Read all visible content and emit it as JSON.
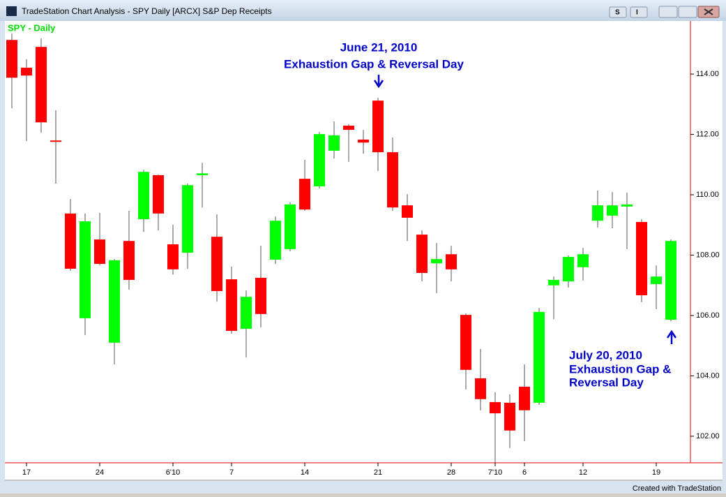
{
  "window_title": "TradeStation Chart Analysis - SPY Daily [ARCX] S&P Dep Receipts",
  "toolbar": {
    "button_1": "S",
    "button_2": "I"
  },
  "footer": "Created with TradeStation",
  "chart_data": {
    "type": "candlestick",
    "title": "SPY - Daily",
    "annotations": [
      [
        "June 21, 2010",
        "Exhaustion Gap & Reversal Day"
      ],
      [
        "July 20, 2010",
        "Exhaustion Gap &",
        "Reversal Day"
      ]
    ],
    "categories": [
      null,
      "17",
      null,
      null,
      null,
      null,
      "24",
      null,
      null,
      null,
      null,
      "6'10",
      null,
      null,
      null,
      "7",
      null,
      null,
      null,
      null,
      "14",
      null,
      null,
      null,
      null,
      "21",
      null,
      null,
      null,
      null,
      "28",
      null,
      null,
      "7'10",
      null,
      "6",
      null,
      null,
      null,
      "12",
      null,
      null,
      null,
      null,
      "19",
      null
    ],
    "open": [
      115.13,
      114.21,
      114.9,
      111.8,
      109.38,
      105.91,
      108.52,
      105.1,
      108.47,
      109.19,
      110.65,
      108.36,
      108.08,
      110.65,
      108.61,
      107.2,
      105.56,
      107.25,
      107.85,
      108.2,
      110.53,
      110.28,
      111.46,
      112.29,
      111.83,
      113.12,
      111.41,
      109.65,
      108.68,
      107.73,
      108.03,
      106.02,
      103.92,
      103.13,
      103.11,
      103.64,
      103.11,
      107.0,
      107.13,
      107.6,
      109.14,
      109.31,
      109.61,
      109.1,
      107.04,
      105.86
    ],
    "high": [
      115.34,
      114.49,
      115.18,
      112.8,
      109.86,
      109.38,
      109.4,
      107.87,
      109.47,
      110.83,
      110.67,
      109.01,
      110.37,
      111.06,
      109.35,
      107.62,
      106.83,
      108.31,
      109.28,
      109.75,
      111.16,
      112.08,
      112.43,
      112.34,
      112.15,
      113.21,
      111.9,
      110.02,
      108.82,
      108.4,
      108.31,
      106.07,
      104.89,
      103.46,
      103.39,
      104.38,
      106.25,
      107.29,
      107.99,
      108.24,
      110.14,
      110.09,
      110.07,
      109.19,
      107.66,
      108.52
    ],
    "low": [
      112.87,
      111.78,
      112.06,
      110.37,
      107.48,
      105.35,
      107.66,
      104.38,
      106.86,
      108.77,
      108.82,
      107.36,
      107.55,
      109.58,
      106.46,
      105.4,
      104.61,
      105.61,
      107.71,
      108.13,
      109.47,
      110.21,
      111.2,
      111.09,
      111.36,
      110.79,
      109.47,
      108.47,
      107.13,
      106.74,
      107.13,
      103.55,
      102.86,
      101.12,
      101.61,
      101.84,
      103.04,
      105.88,
      106.93,
      107.16,
      108.91,
      108.89,
      108.2,
      106.44,
      106.21,
      105.81
    ],
    "close": [
      113.88,
      113.95,
      112.4,
      111.76,
      107.55,
      109.12,
      107.71,
      107.83,
      107.18,
      110.76,
      109.38,
      107.53,
      110.32,
      110.71,
      106.81,
      105.49,
      106.62,
      106.05,
      109.14,
      109.68,
      109.51,
      112.01,
      111.97,
      112.15,
      111.73,
      111.41,
      109.58,
      109.24,
      107.41,
      107.87,
      107.53,
      104.2,
      103.23,
      102.76,
      102.19,
      102.86,
      106.12,
      107.18,
      107.94,
      108.03,
      109.65,
      109.65,
      109.68,
      106.67,
      107.29,
      108.47
    ],
    "up_color": "#00ff00",
    "down_color": "#ff0000",
    "ylim": [
      101.12,
      115.76
    ],
    "yticks": [
      {
        "value": 102,
        "label": "102.00"
      },
      {
        "value": 104,
        "label": "104.00"
      },
      {
        "value": 106,
        "label": "106.00"
      },
      {
        "value": 108,
        "label": "108.00"
      },
      {
        "value": 110,
        "label": "110.00"
      },
      {
        "value": 112,
        "label": "112.00"
      },
      {
        "value": 114,
        "label": "114.00"
      }
    ]
  }
}
